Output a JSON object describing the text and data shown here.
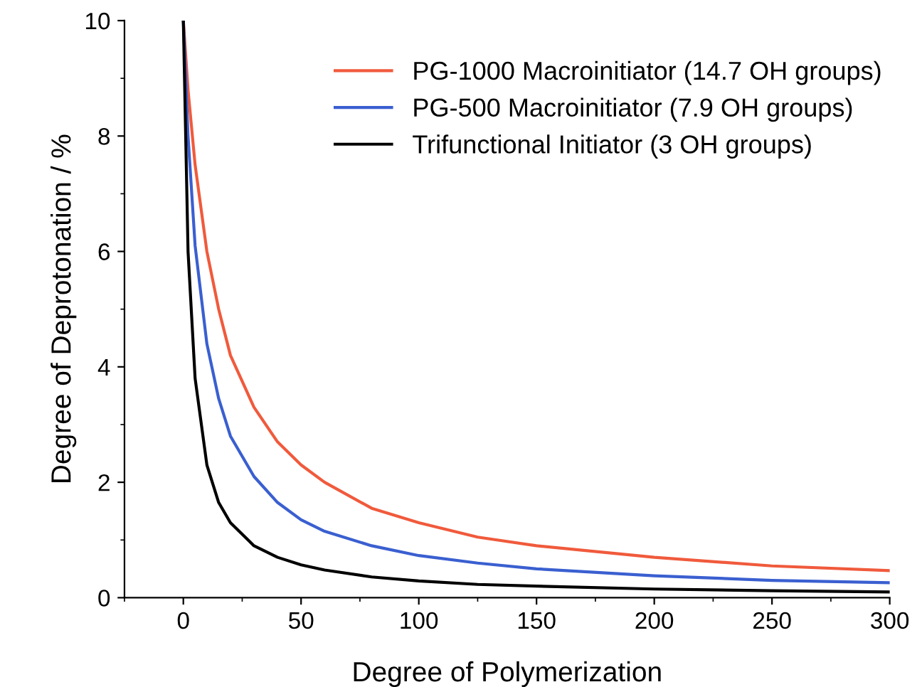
{
  "chart_data": {
    "type": "line",
    "xlabel": "Degree of Polymerization",
    "ylabel": "Degree of Deprotonation / %",
    "x": [
      0,
      2,
      5,
      10,
      15,
      20,
      30,
      40,
      50,
      60,
      80,
      100,
      125,
      150,
      200,
      250,
      300
    ],
    "series": [
      {
        "name": "PG-1000 Macroinitiator (14.7 OH groups)",
        "color": "#f05a3c",
        "values": [
          10,
          8.8,
          7.5,
          6.0,
          5.0,
          4.2,
          3.3,
          2.7,
          2.3,
          2.0,
          1.55,
          1.3,
          1.05,
          0.9,
          0.7,
          0.55,
          0.47
        ]
      },
      {
        "name": "PG-500 Macroinitiator (7.9 OH groups)",
        "color": "#3a5fd0",
        "values": [
          10,
          8.0,
          6.1,
          4.4,
          3.45,
          2.8,
          2.1,
          1.65,
          1.35,
          1.15,
          0.9,
          0.73,
          0.6,
          0.5,
          0.38,
          0.3,
          0.26
        ]
      },
      {
        "name": "Trifunctional Initiator (3 OH groups)",
        "color": "#000000",
        "values": [
          10,
          6.0,
          3.8,
          2.3,
          1.65,
          1.3,
          0.9,
          0.7,
          0.57,
          0.48,
          0.36,
          0.29,
          0.23,
          0.2,
          0.15,
          0.12,
          0.1
        ]
      }
    ],
    "xlim": [
      -25,
      300
    ],
    "xticks": [
      0,
      50,
      100,
      150,
      200,
      250,
      300
    ],
    "ylim": [
      0,
      10
    ],
    "yticks": [
      0,
      2,
      4,
      6,
      8,
      10
    ],
    "grid": false,
    "legend": "top right",
    "marker": "none",
    "line_style": "solid"
  }
}
